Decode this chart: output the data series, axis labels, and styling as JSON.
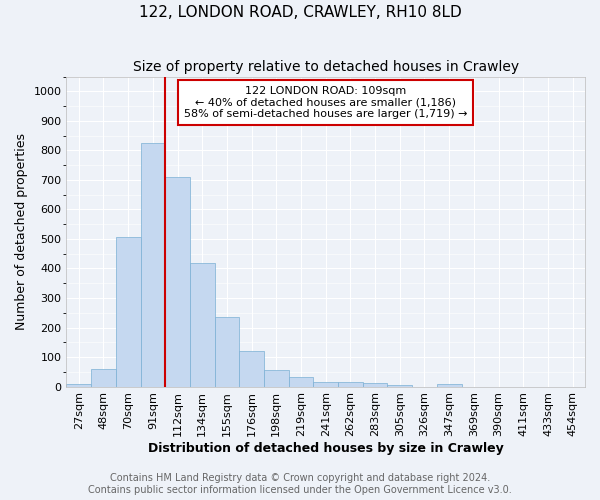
{
  "title": "122, LONDON ROAD, CRAWLEY, RH10 8LD",
  "subtitle": "Size of property relative to detached houses in Crawley",
  "xlabel": "Distribution of detached houses by size in Crawley",
  "ylabel": "Number of detached properties",
  "bin_labels": [
    "27sqm",
    "48sqm",
    "70sqm",
    "91sqm",
    "112sqm",
    "134sqm",
    "155sqm",
    "176sqm",
    "198sqm",
    "219sqm",
    "241sqm",
    "262sqm",
    "283sqm",
    "305sqm",
    "326sqm",
    "347sqm",
    "369sqm",
    "390sqm",
    "411sqm",
    "433sqm",
    "454sqm"
  ],
  "bar_values": [
    8,
    58,
    505,
    825,
    710,
    420,
    234,
    119,
    57,
    32,
    16,
    14,
    13,
    5,
    0,
    8,
    0,
    0,
    0,
    0,
    0
  ],
  "bar_color": "#c5d8f0",
  "bar_edge_color": "#7aafd4",
  "background_color": "#eef2f8",
  "grid_color": "#ffffff",
  "vline_x": 4.0,
  "vline_color": "#cc0000",
  "annotation_line1": "122 LONDON ROAD: 109sqm",
  "annotation_line2": "← 40% of detached houses are smaller (1,186)",
  "annotation_line3": "58% of semi-detached houses are larger (1,719) →",
  "annotation_box_color": "#ffffff",
  "annotation_box_edge": "#cc0000",
  "ylim": [
    0,
    1050
  ],
  "yticks": [
    0,
    100,
    200,
    300,
    400,
    500,
    600,
    700,
    800,
    900,
    1000
  ],
  "footer_line1": "Contains HM Land Registry data © Crown copyright and database right 2024.",
  "footer_line2": "Contains public sector information licensed under the Open Government Licence v3.0.",
  "title_fontsize": 11,
  "subtitle_fontsize": 10,
  "axis_label_fontsize": 9,
  "tick_fontsize": 8,
  "annotation_fontsize": 8,
  "footer_fontsize": 7
}
